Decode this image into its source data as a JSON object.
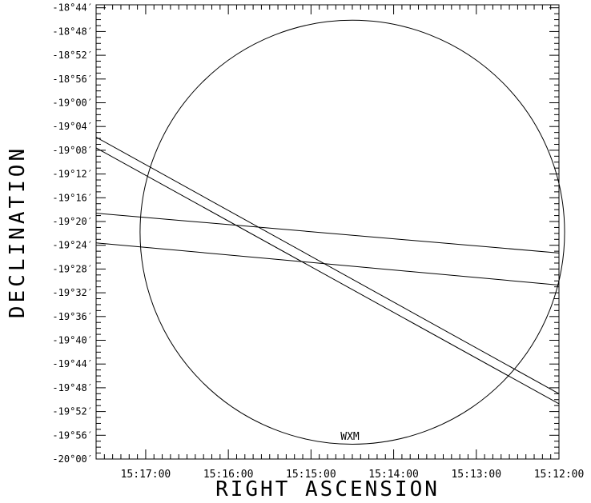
{
  "chart_data": {
    "type": "scatter",
    "xlabel": "RIGHT ASCENSION",
    "ylabel": "DECLINATION",
    "x_ticks": [
      "15:17:00",
      "15:16:00",
      "15:15:00",
      "15:14:00",
      "15:13:00",
      "15:12:00"
    ],
    "y_ticks": [
      "-18°44′",
      "-18°48′",
      "-18°52′",
      "-18°56′",
      "-19°00′",
      "-19°04′",
      "-19°08′",
      "-19°12′",
      "-19°16′",
      "-19°20′",
      "-19°24′",
      "-19°28′",
      "-19°32′",
      "-19°36′",
      "-19°40′",
      "-19°44′",
      "-19°48′",
      "-19°52′",
      "-19°56′",
      "-20°00′"
    ],
    "annotation": "WXM",
    "xlim_seconds_ra": [
      1037.6,
      1032.0
    ],
    "ylim_arcmin_dec": [
      -1200,
      -1123.5
    ],
    "circle": {
      "center_ra_s": 1034.5,
      "center_dec_arcmin": -1161.8,
      "radius_arcmin": 35.7
    },
    "bands": [
      {
        "lines": [
          {
            "from": [
              1037.6,
              -1145.8
            ],
            "to": [
              1032.0,
              -1189.0
            ]
          },
          {
            "from": [
              1037.6,
              -1147.6
            ],
            "to": [
              1032.0,
              -1190.7
            ]
          }
        ]
      },
      {
        "lines": [
          {
            "from": [
              1037.6,
              -1158.6
            ],
            "to": [
              1032.0,
              -1165.3
            ]
          },
          {
            "from": [
              1037.6,
              -1163.6
            ],
            "to": [
              1032.0,
              -1170.7
            ]
          }
        ]
      }
    ]
  }
}
